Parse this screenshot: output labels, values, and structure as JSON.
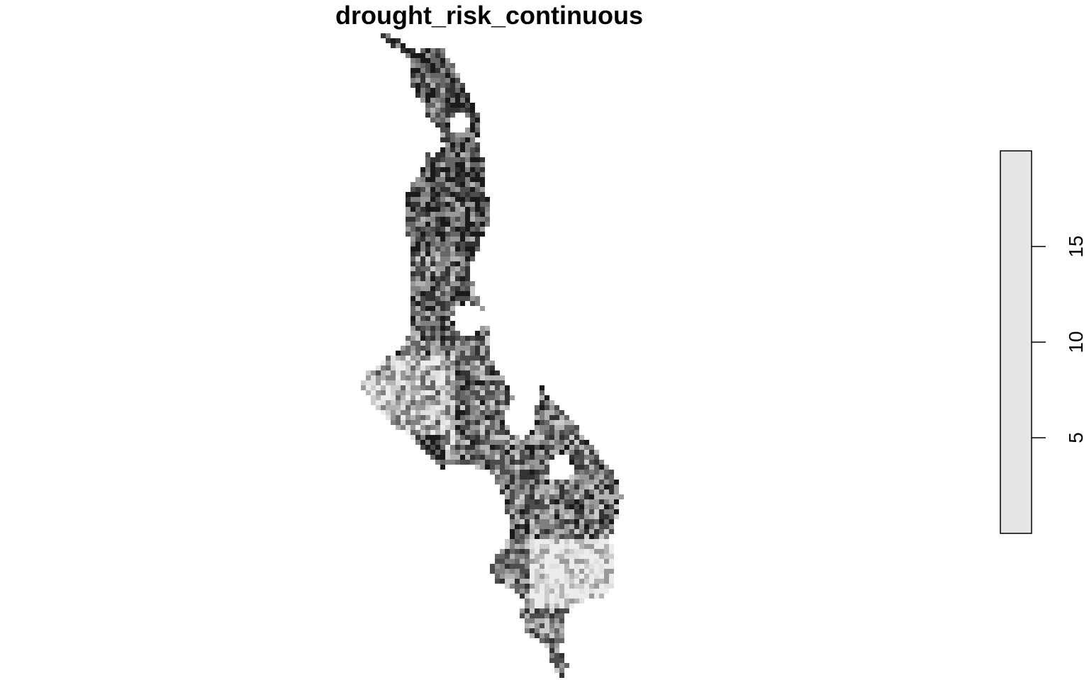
{
  "title": "drought_risk_continuous",
  "legend": {
    "min": 0,
    "max": 20,
    "ticks": [
      5,
      10,
      15
    ],
    "tick_labels": [
      "5",
      "10",
      "15"
    ],
    "fill_color": "#e6e6e6"
  },
  "raster": {
    "palette": [
      "#1a1a1a",
      "#333333",
      "#4d4d4d",
      "#666666",
      "#808080",
      "#999999",
      "#b3b3b3",
      "#cccccc",
      "#e0e0e0",
      "#ececec"
    ],
    "description_values": "grayscale raster values, dark = high, light = low"
  }
}
